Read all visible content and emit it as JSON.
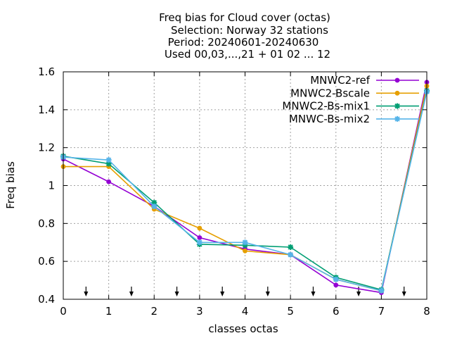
{
  "chart_data": {
    "type": "line",
    "title_lines": [
      "Freq bias  for Cloud cover (octas)",
      "Selection: Norway     32 stations",
      "Period: 20240601-20240630",
      "Used 00,03,...,21 + 01 02 ... 12"
    ],
    "xlabel": "classes octas",
    "ylabel": "Freq bias",
    "xlim": [
      0,
      8
    ],
    "ylim": [
      0.4,
      1.6
    ],
    "xticks": [
      "0",
      "1",
      "2",
      "3",
      "4",
      "5",
      "6",
      "7",
      "8"
    ],
    "yticks": [
      "0.4",
      "0.6",
      "0.8",
      "1",
      "1.2",
      "1.4",
      "1.6"
    ],
    "grid": true,
    "legend_position": "top-right",
    "arrow_markers_x": [
      0.5,
      1.5,
      2.5,
      3.5,
      4.5,
      5.5,
      6.5,
      7.5
    ],
    "x": [
      0,
      1,
      2,
      3,
      4,
      5,
      6,
      7,
      8
    ],
    "series": [
      {
        "name": "MNWC2-ref",
        "color": "#9400d3",
        "marker": "circle",
        "values": [
          1.14,
          1.02,
          0.89,
          0.725,
          0.665,
          0.635,
          0.475,
          0.435,
          1.545
        ]
      },
      {
        "name": "MNWC2-Bscale",
        "color": "#e69f00",
        "marker": "circle",
        "values": [
          1.1,
          1.1,
          0.875,
          0.775,
          0.655,
          0.635,
          0.505,
          0.445,
          1.525
        ]
      },
      {
        "name": "MNWC2-Bs-mix1",
        "color": "#009e73",
        "marker": "star",
        "values": [
          1.155,
          1.115,
          0.91,
          0.69,
          0.685,
          0.675,
          0.515,
          0.45,
          1.5
        ]
      },
      {
        "name": "MNWC-Bs-mix2",
        "color": "#56b4e9",
        "marker": "star",
        "values": [
          1.15,
          1.135,
          0.89,
          0.7,
          0.7,
          0.635,
          0.505,
          0.445,
          1.495
        ]
      }
    ]
  }
}
